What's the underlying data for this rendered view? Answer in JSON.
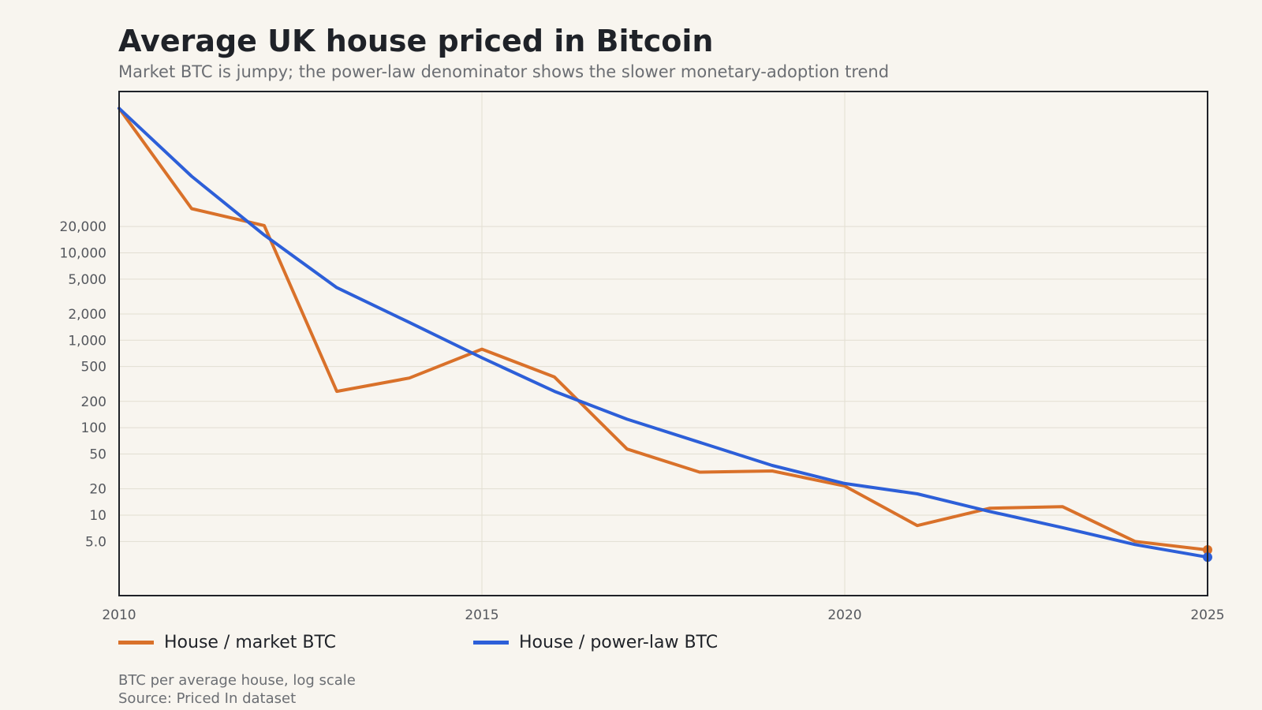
{
  "title": "Average UK house priced in Bitcoin",
  "subtitle": "Market BTC is jumpy; the power-law denominator shows the slower monetary-adoption trend",
  "footer": {
    "note": "BTC per average house, log scale",
    "source": "Source: Priced In dataset"
  },
  "colors": {
    "background": "#f8f5ef",
    "market": "#d9712a",
    "powerlaw": "#2d5fd8",
    "grid": "#e2ded2",
    "axis": "#1f2228"
  },
  "chart_data": {
    "type": "line",
    "x": [
      2010,
      2011,
      2012,
      2013,
      2014,
      2015,
      2016,
      2017,
      2018,
      2019,
      2020,
      2021,
      2022,
      2023,
      2024,
      2025
    ],
    "xticks": [
      2010,
      2015,
      2020,
      2025
    ],
    "xtick_labels": [
      "2010",
      "2015",
      "2020",
      "2025"
    ],
    "yscale": "log",
    "ylim": [
      1.2,
      700000
    ],
    "yticks": [
      5,
      10,
      20,
      50,
      100,
      200,
      500,
      1000,
      2000,
      5000,
      10000,
      20000
    ],
    "ytick_labels": [
      "5.0",
      "10",
      "20",
      "50",
      "100",
      "200",
      "500",
      "1,000",
      "2,000",
      "5,000",
      "10,000",
      "20,000"
    ],
    "grid": true,
    "legend_position": "bottom",
    "series": [
      {
        "name": "House / market BTC",
        "color": "#d9712a",
        "values": [
          450000,
          32000,
          20500,
          260,
          370,
          790,
          380,
          57,
          31,
          32,
          21.5,
          7.6,
          12,
          12.5,
          5,
          4
        ]
      },
      {
        "name": "House / power-law BTC",
        "color": "#2d5fd8",
        "values": [
          450000,
          75000,
          16000,
          4000,
          1600,
          630,
          260,
          125,
          68,
          37,
          23,
          17.5,
          11,
          7.2,
          4.6,
          3.3
        ]
      }
    ]
  }
}
